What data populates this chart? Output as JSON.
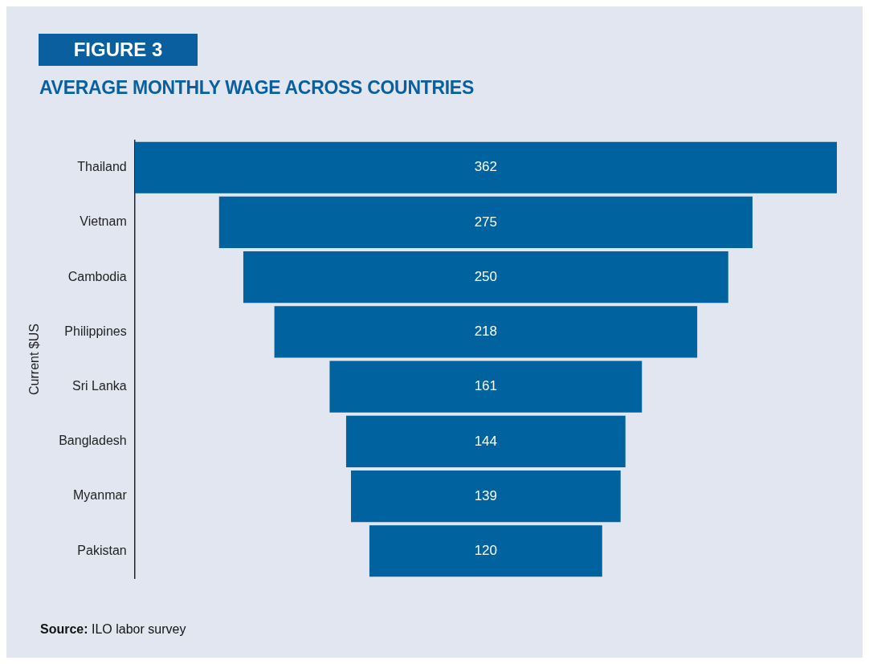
{
  "chart_data": {
    "type": "other",
    "title": "AVERAGE MONTHLY WAGE ACROSS COUNTRIES",
    "ylabel": "Current $US",
    "categories": [
      "Thailand",
      "Vietnam",
      "Cambodia",
      "Philippines",
      "Sri Lanka",
      "Bangladesh",
      "Myanmar",
      "Pakistan"
    ],
    "values": [
      362,
      275,
      250,
      218,
      161,
      144,
      139,
      120
    ],
    "color": "#00629e",
    "data_labels": true,
    "annotations": [
      "FIGURE 3",
      "Source: ILO labor survey"
    ]
  }
}
